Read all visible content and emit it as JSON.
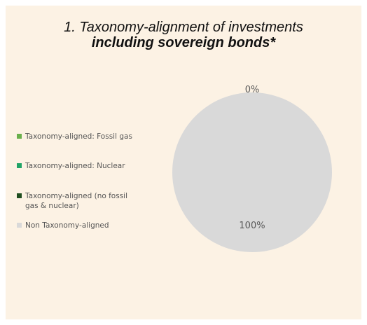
{
  "title_line1": "1. Taxonomy-alignment of investments",
  "title_line2": "including sovereign bonds*",
  "chart_data": {
    "type": "pie",
    "title": "1. Taxonomy-alignment of investments including sovereign bonds*",
    "legend_position": "left",
    "series": [
      {
        "name": "Taxonomy-aligned: Fossil gas",
        "value": 0,
        "color": "#6ab04c"
      },
      {
        "name": "Taxonomy-aligned: Nuclear",
        "value": 0,
        "color": "#20a466"
      },
      {
        "name": "Taxonomy-aligned (no fossil gas & nuclear)",
        "value": 0,
        "color": "#1f4e1f"
      },
      {
        "name": "Non Taxonomy-aligned",
        "value": 100,
        "color": "#d9d9d9"
      }
    ],
    "data_labels": [
      "0%",
      "100%"
    ]
  },
  "legend": [
    {
      "line1": "Taxonomy-aligned: Fossil gas",
      "line2": ""
    },
    {
      "line1": "Taxonomy-aligned: Nuclear",
      "line2": ""
    },
    {
      "line1": "Taxonomy-aligned (no fossil",
      "line2": "gas & nuclear)"
    },
    {
      "line1": "Non Taxonomy-aligned",
      "line2": ""
    }
  ]
}
